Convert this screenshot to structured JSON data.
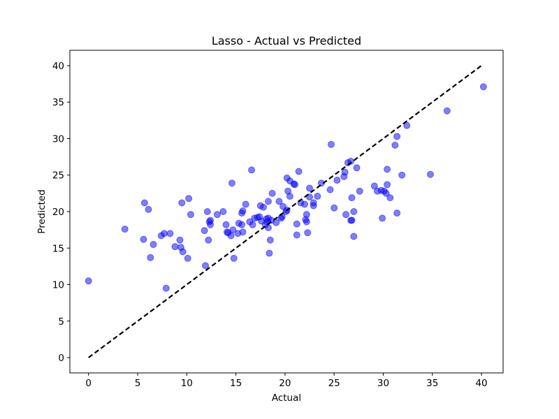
{
  "chart_data": {
    "type": "scatter",
    "title": "Lasso - Actual vs Predicted",
    "xlabel": "Actual",
    "ylabel": "Predicted",
    "xlim": [
      -1.9,
      42.2
    ],
    "ylim": [
      -2.1,
      42.1
    ],
    "xticks": [
      0,
      5,
      10,
      15,
      20,
      25,
      30,
      35,
      40
    ],
    "yticks": [
      0,
      5,
      10,
      15,
      20,
      25,
      30,
      35,
      40
    ],
    "grid": false,
    "point_color": "#0000ff",
    "point_alpha": 0.5,
    "reference_line": {
      "from": [
        0,
        0
      ],
      "to": [
        40.1,
        40.1
      ],
      "style": "dashed",
      "color": "#000000"
    },
    "series": [
      {
        "points": [
          [
            0.0,
            10.5
          ],
          [
            3.7,
            17.6
          ],
          [
            5.6,
            16.2
          ],
          [
            5.7,
            21.2
          ],
          [
            6.1,
            20.3
          ],
          [
            6.3,
            13.7
          ],
          [
            6.6,
            15.5
          ],
          [
            7.4,
            16.7
          ],
          [
            7.7,
            17.0
          ],
          [
            7.9,
            9.5
          ],
          [
            8.3,
            17.0
          ],
          [
            8.8,
            15.2
          ],
          [
            9.3,
            16.1
          ],
          [
            9.4,
            15.1
          ],
          [
            9.5,
            21.2
          ],
          [
            9.6,
            14.5
          ],
          [
            10.1,
            13.6
          ],
          [
            10.2,
            21.8
          ],
          [
            10.4,
            19.6
          ],
          [
            11.8,
            17.4
          ],
          [
            11.9,
            12.6
          ],
          [
            12.1,
            20.0
          ],
          [
            12.2,
            16.1
          ],
          [
            12.3,
            18.6
          ],
          [
            12.4,
            18.2
          ],
          [
            12.4,
            18.8
          ],
          [
            13.1,
            19.6
          ],
          [
            13.7,
            20.0
          ],
          [
            14.0,
            18.2
          ],
          [
            14.1,
            17.2
          ],
          [
            14.2,
            17.1
          ],
          [
            14.5,
            16.7
          ],
          [
            14.6,
            23.9
          ],
          [
            14.7,
            17.5
          ],
          [
            14.8,
            13.6
          ],
          [
            15.2,
            17.0
          ],
          [
            15.3,
            18.4
          ],
          [
            15.6,
            18.2
          ],
          [
            15.6,
            19.8
          ],
          [
            15.7,
            20.1
          ],
          [
            15.7,
            17.2
          ],
          [
            16.0,
            21.0
          ],
          [
            16.4,
            18.6
          ],
          [
            16.6,
            25.7
          ],
          [
            16.7,
            18.2
          ],
          [
            16.9,
            19.1
          ],
          [
            17.2,
            19.2
          ],
          [
            17.4,
            19.3
          ],
          [
            17.5,
            20.8
          ],
          [
            17.6,
            18.7
          ],
          [
            17.8,
            20.6
          ],
          [
            18.0,
            18.2
          ],
          [
            18.1,
            19.0
          ],
          [
            18.2,
            18.6
          ],
          [
            18.3,
            19.1
          ],
          [
            18.3,
            21.4
          ],
          [
            18.3,
            17.8
          ],
          [
            18.4,
            14.3
          ],
          [
            18.5,
            16.1
          ],
          [
            18.6,
            18.8
          ],
          [
            18.7,
            22.5
          ],
          [
            19.1,
            18.5
          ],
          [
            19.4,
            21.4
          ],
          [
            19.6,
            19.1
          ],
          [
            19.7,
            19.3
          ],
          [
            19.8,
            20.7
          ],
          [
            20.1,
            20.0
          ],
          [
            20.2,
            20.2
          ],
          [
            20.2,
            24.6
          ],
          [
            20.3,
            22.8
          ],
          [
            20.5,
            22.1
          ],
          [
            20.5,
            24.2
          ],
          [
            20.9,
            23.8
          ],
          [
            21.0,
            23.7
          ],
          [
            21.2,
            16.8
          ],
          [
            21.2,
            18.3
          ],
          [
            21.4,
            25.5
          ],
          [
            21.6,
            21.2
          ],
          [
            22.0,
            21.0
          ],
          [
            22.1,
            18.9
          ],
          [
            22.2,
            19.6
          ],
          [
            22.2,
            18.6
          ],
          [
            22.3,
            17.1
          ],
          [
            22.5,
            22.0
          ],
          [
            22.5,
            23.2
          ],
          [
            22.9,
            20.8
          ],
          [
            22.9,
            21.2
          ],
          [
            23.3,
            22.1
          ],
          [
            23.7,
            23.9
          ],
          [
            24.6,
            23.0
          ],
          [
            24.7,
            29.2
          ],
          [
            25.0,
            20.5
          ],
          [
            25.3,
            24.3
          ],
          [
            26.0,
            24.8
          ],
          [
            26.1,
            25.4
          ],
          [
            26.2,
            19.6
          ],
          [
            26.4,
            26.7
          ],
          [
            26.7,
            18.8
          ],
          [
            26.7,
            26.9
          ],
          [
            26.8,
            18.8
          ],
          [
            26.8,
            21.9
          ],
          [
            27.0,
            16.6
          ],
          [
            27.0,
            20.0
          ],
          [
            27.3,
            26.0
          ],
          [
            27.6,
            22.8
          ],
          [
            29.1,
            23.5
          ],
          [
            29.4,
            22.8
          ],
          [
            29.8,
            22.9
          ],
          [
            29.9,
            19.1
          ],
          [
            30.1,
            22.8
          ],
          [
            30.3,
            22.5
          ],
          [
            30.4,
            25.8
          ],
          [
            30.4,
            23.7
          ],
          [
            30.7,
            21.9
          ],
          [
            31.2,
            29.1
          ],
          [
            31.4,
            19.8
          ],
          [
            31.4,
            30.3
          ],
          [
            31.9,
            25.0
          ],
          [
            32.4,
            31.8
          ],
          [
            34.8,
            25.1
          ],
          [
            36.5,
            33.8
          ],
          [
            40.2,
            37.1
          ]
        ]
      }
    ]
  }
}
